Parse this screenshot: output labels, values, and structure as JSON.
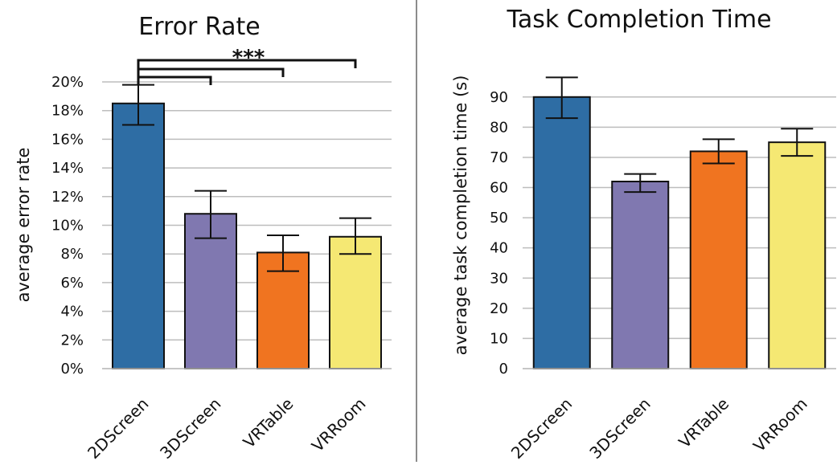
{
  "chart_data": [
    {
      "type": "bar",
      "title": "Error Rate",
      "ylabel": "average error rate",
      "xlabel": "",
      "categories": [
        "2DScreen",
        "3DScreen",
        "VRTable",
        "VRRoom"
      ],
      "values": [
        18.5,
        10.8,
        8.1,
        9.2
      ],
      "error_low": [
        17.0,
        9.1,
        6.8,
        8.0
      ],
      "error_high": [
        19.8,
        12.4,
        9.3,
        10.5
      ],
      "colors": [
        "#2e6da4",
        "#8078b0",
        "#f07420",
        "#f5e873"
      ],
      "ylim": [
        0,
        20
      ],
      "ytick_step": 2,
      "ytick_labels": [
        "0%",
        "2%",
        "4%",
        "6%",
        "8%",
        "10%",
        "12%",
        "14%",
        "16%",
        "18%",
        "20%"
      ],
      "grid": true,
      "significance": {
        "label": "***",
        "from": "2DScreen",
        "to": [
          "3DScreen",
          "VRTable",
          "VRRoom"
        ]
      }
    },
    {
      "type": "bar",
      "title": "Task Completion Time",
      "ylabel": "average task completion time (s)",
      "xlabel": "",
      "categories": [
        "2DScreen",
        "3DScreen",
        "VRTable",
        "VRRoom"
      ],
      "values": [
        90,
        62,
        72,
        75
      ],
      "error_low": [
        83,
        58.5,
        68,
        70.5
      ],
      "error_high": [
        96.5,
        64.5,
        76,
        79.5
      ],
      "colors": [
        "#2e6da4",
        "#8078b0",
        "#f07420",
        "#f5e873"
      ],
      "ylim": [
        0,
        95
      ],
      "ytick_step": 10,
      "ytick_labels": [
        "0",
        "10",
        "20",
        "30",
        "40",
        "50",
        "60",
        "70",
        "80",
        "90"
      ],
      "grid": true
    }
  ]
}
